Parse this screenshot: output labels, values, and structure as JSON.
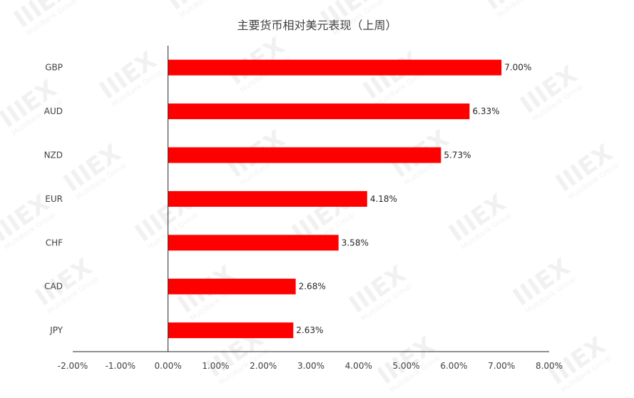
{
  "chart_data": {
    "type": "bar",
    "orientation": "horizontal",
    "title": "主要货币相对美元表现（上周）",
    "categories": [
      "GBP",
      "AUD",
      "NZD",
      "EUR",
      "CHF",
      "CAD",
      "JPY"
    ],
    "values": [
      7.0,
      6.33,
      5.73,
      4.18,
      3.58,
      2.68,
      2.63
    ],
    "data_labels": [
      "7.00%",
      "6.33%",
      "5.73%",
      "4.18%",
      "3.58%",
      "2.68%",
      "2.63%"
    ],
    "xlim": [
      -2,
      8
    ],
    "x_ticks": [
      -2,
      -1,
      0,
      1,
      2,
      3,
      4,
      5,
      6,
      7,
      8
    ],
    "x_tick_labels": [
      "-2.00%",
      "-1.00%",
      "0.00%",
      "1.00%",
      "2.00%",
      "3.00%",
      "4.00%",
      "5.00%",
      "6.00%",
      "7.00%",
      "8.00%"
    ],
    "bar_color": "#ff0000",
    "grid": false,
    "legend": "none"
  },
  "watermark": {
    "logo": "IIIEX",
    "sub": "MultiBank Group"
  }
}
